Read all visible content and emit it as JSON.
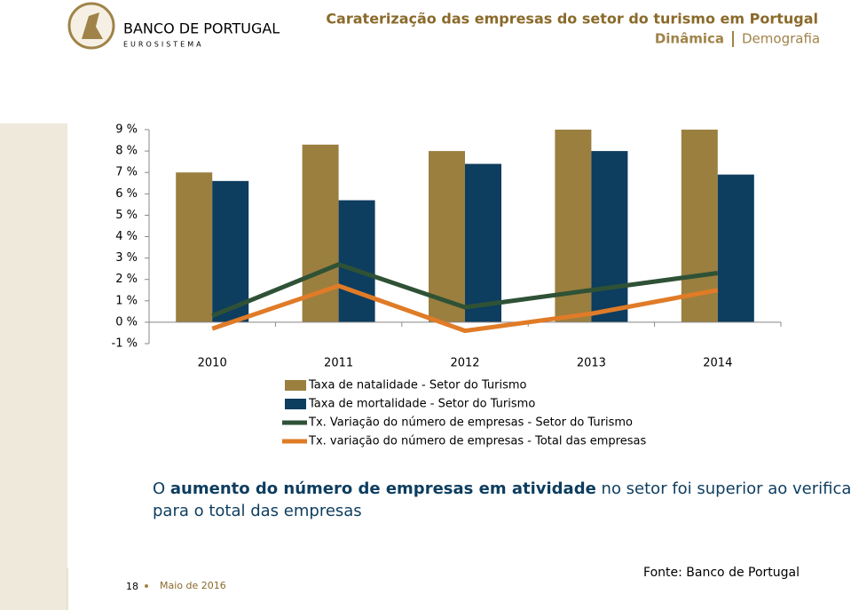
{
  "header": {
    "logo_name": "BANCO DE PORTUGAL",
    "logo_sub": "EUROSISTEMA",
    "title": "Caraterização das empresas do setor do turismo em Portugal",
    "section": "Dinâmica",
    "subsection": "Demografia"
  },
  "chart_data": {
    "type": "bar_line",
    "categories": [
      "2010",
      "2011",
      "2012",
      "2013",
      "2014"
    ],
    "series": [
      {
        "name": "Taxa de natalidade - Setor do Turismo",
        "type": "bar",
        "color": "#9b7f3f",
        "values": [
          7.0,
          8.3,
          8.0,
          9.0,
          9.0
        ]
      },
      {
        "name": "Taxa de mortalidade - Setor do Turismo",
        "type": "bar",
        "color": "#0d3d5f",
        "values": [
          6.6,
          5.7,
          7.4,
          8.0,
          6.9
        ]
      },
      {
        "name": "Tx. Variação do número de empresas - Setor do Turismo",
        "type": "line",
        "color": "#2f5236",
        "values": [
          0.3,
          2.7,
          0.7,
          1.5,
          2.3
        ]
      },
      {
        "name": "Tx. variação do número de empresas - Total das empresas",
        "type": "line",
        "color": "#e07b27",
        "values": [
          -0.3,
          1.7,
          -0.4,
          0.4,
          1.5
        ]
      }
    ],
    "ylim": [
      -1,
      9
    ],
    "yticks": [
      {
        "value": -1,
        "label": "-1 %"
      },
      {
        "value": 0,
        "label": "0 %"
      },
      {
        "value": 1,
        "label": "1 %"
      },
      {
        "value": 2,
        "label": "2 %"
      },
      {
        "value": 3,
        "label": "3 %"
      },
      {
        "value": 4,
        "label": "4 %"
      },
      {
        "value": 5,
        "label": "5 %"
      },
      {
        "value": 6,
        "label": "6 %"
      },
      {
        "value": 7,
        "label": "7 %"
      },
      {
        "value": 8,
        "label": "8 %"
      },
      {
        "value": 9,
        "label": "9 %"
      }
    ],
    "grid": false
  },
  "conclusion": {
    "line1": [
      "O ",
      "aumento do número de empresas em atividade",
      " no setor foi superior ao verificado"
    ],
    "line2": "para o total das empresas"
  },
  "footer": {
    "page": "18",
    "date": "Maio de 2016",
    "source": "Fonte: Banco de Portugal"
  }
}
